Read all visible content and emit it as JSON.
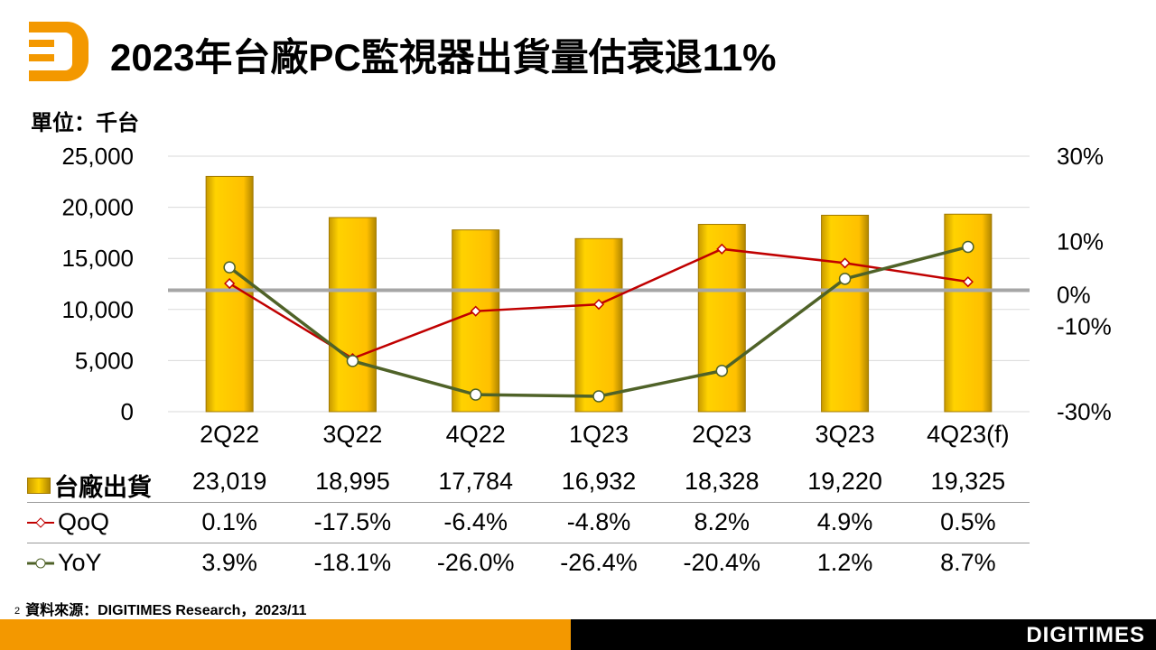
{
  "header": {
    "title": "2023年台廠PC監視器出貨量估衰退11%",
    "unit": "單位：千台"
  },
  "chart_data": {
    "type": "bar+line",
    "categories": [
      "2Q22",
      "3Q22",
      "4Q22",
      "1Q23",
      "2Q23",
      "3Q23",
      "4Q23(f)"
    ],
    "series": [
      {
        "name": "台廠出貨",
        "type": "bar",
        "axis": "left",
        "values": [
          23019,
          18995,
          17784,
          16932,
          18328,
          19220,
          19325
        ],
        "labels": [
          "23,019",
          "18,995",
          "17,784",
          "16,932",
          "18,328",
          "19,220",
          "19,325"
        ],
        "color": "#ffc000"
      },
      {
        "name": "QoQ",
        "type": "line",
        "axis": "right",
        "values": [
          0.1,
          -17.5,
          -6.4,
          -4.8,
          8.2,
          4.9,
          0.5
        ],
        "labels": [
          "0.1%",
          "-17.5%",
          "-6.4%",
          "-4.8%",
          "8.2%",
          "4.9%",
          "0.5%"
        ],
        "color": "#c00000"
      },
      {
        "name": "YoY",
        "type": "line",
        "axis": "right",
        "values": [
          3.9,
          -18.1,
          -26.0,
          -26.4,
          -20.4,
          1.2,
          8.7
        ],
        "labels": [
          "3.9%",
          "-18.1%",
          "-26.0%",
          "-26.4%",
          "-20.4%",
          "1.2%",
          "8.7%"
        ],
        "color": "#4f6228"
      }
    ],
    "ylim": [
      0,
      25000
    ],
    "yticks": [
      "0",
      "5,000",
      "10,000",
      "15,000",
      "20,000",
      "25,000"
    ],
    "y2lim": [
      -30,
      30
    ],
    "y2ticks": [
      {
        "v": 30,
        "t": "30%"
      },
      {
        "v": 10,
        "t": "10%"
      },
      {
        "v": 0,
        "t": "0%"
      },
      {
        "v": -10,
        "t": "-10%"
      },
      {
        "v": -30,
        "t": "-30%"
      }
    ],
    "grid": true
  },
  "source": {
    "page": "2",
    "text": "資料來源：DIGITIMES Research，2023/11"
  },
  "footer": {
    "brand": "DIGITIMES"
  }
}
